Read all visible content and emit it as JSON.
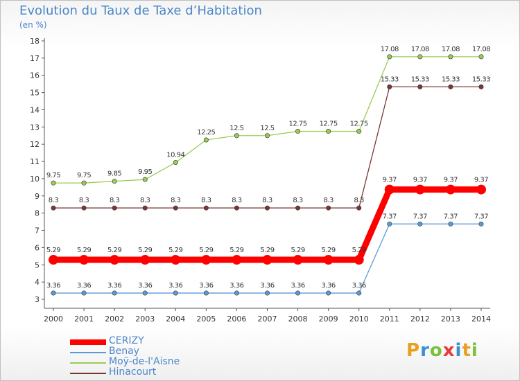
{
  "header": {
    "title": "Evolution du Taux de Taxe d’Habitation",
    "subtitle": "(en %)"
  },
  "logo": {
    "text": "Proxiti",
    "letter_colors": [
      "#e8a020",
      "#3a8fd0",
      "#7ac13a",
      "#e83a3a",
      "#3a8fd0",
      "#e8a020",
      "#7ac13a"
    ]
  },
  "chart_data": {
    "type": "line",
    "title": "Evolution du Taux de Taxe d’Habitation",
    "ylabel": "(en %)",
    "xlabel": "",
    "ylim": [
      3,
      18
    ],
    "yticks": [
      3,
      4,
      5,
      6,
      7,
      8,
      9,
      10,
      11,
      12,
      13,
      14,
      15,
      16,
      17,
      18
    ],
    "grid": false,
    "legend_position": "bottom-left",
    "x": [
      2000,
      2001,
      2002,
      2003,
      2004,
      2005,
      2006,
      2007,
      2008,
      2009,
      2010,
      2011,
      2012,
      2013,
      2014
    ],
    "series": [
      {
        "name": "CERIZY",
        "color": "#ff0000",
        "values": [
          5.29,
          5.29,
          5.29,
          5.29,
          5.29,
          5.29,
          5.29,
          5.29,
          5.29,
          5.29,
          5.29,
          9.37,
          9.37,
          9.37,
          9.37
        ],
        "labels": [
          "5.29",
          "5.29",
          "5.29",
          "5.29",
          "5.29",
          "5.29",
          "5.29",
          "5.29",
          "5.29",
          "5.29",
          "5.29",
          "9.37",
          "9.37",
          "9.37",
          "9.37"
        ]
      },
      {
        "name": "Benay",
        "color": "#5b9bd5",
        "values": [
          3.36,
          3.36,
          3.36,
          3.36,
          3.36,
          3.36,
          3.36,
          3.36,
          3.36,
          3.36,
          3.36,
          7.37,
          7.37,
          7.37,
          7.37
        ],
        "labels": [
          "3.36",
          "3.36",
          "3.36",
          "3.36",
          "3.36",
          "3.36",
          "3.36",
          "3.36",
          "3.36",
          "3.36",
          "3.36",
          "7.37",
          "7.37",
          "7.37",
          "7.37"
        ]
      },
      {
        "name": "Moÿ-de-l'Aisne",
        "color": "#99cc55",
        "values": [
          9.75,
          9.75,
          9.85,
          9.95,
          10.94,
          12.25,
          12.5,
          12.5,
          12.75,
          12.75,
          12.75,
          17.08,
          17.08,
          17.08,
          17.08
        ],
        "labels": [
          "9.75",
          "9.75",
          "9.85",
          "9.95",
          "10.94",
          "12.25",
          "12.5",
          "12.5",
          "12.75",
          "12.75",
          "12.75",
          "17.08",
          "17.08",
          "17.08",
          "17.08"
        ]
      },
      {
        "name": "Hinacourt",
        "color": "#7a3535",
        "values": [
          8.3,
          8.3,
          8.3,
          8.3,
          8.3,
          8.3,
          8.3,
          8.3,
          8.3,
          8.3,
          8.3,
          15.33,
          15.33,
          15.33,
          15.33
        ],
        "labels": [
          "8.3",
          "8.3",
          "8.3",
          "8.3",
          "8.3",
          "8.3",
          "8.3",
          "8.3",
          "8.3",
          "8.3",
          "8.3",
          "15.33",
          "15.33",
          "15.33",
          "15.33"
        ]
      }
    ]
  }
}
